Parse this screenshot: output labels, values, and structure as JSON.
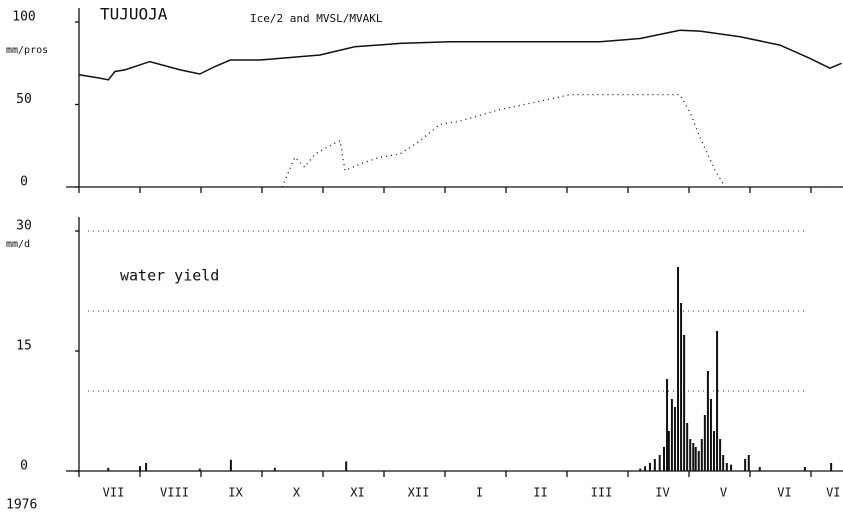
{
  "chart_data": [
    {
      "type": "line",
      "title": "TUJUOJA",
      "subtitle": "Ice/2 and MVSL/MVAKL",
      "ylabel": "mm/pros",
      "ylim": [
        0,
        100
      ],
      "yticks": [
        0,
        50,
        100
      ],
      "xlim": [
        0,
        12.5
      ],
      "xminor": [
        1,
        2,
        3,
        4,
        5,
        6,
        7,
        8,
        9,
        10,
        11,
        12
      ],
      "series": [
        {
          "color": "#111111",
          "style": "solid",
          "x": [
            0,
            0.34,
            0.48,
            0.59,
            0.75,
            1.16,
            1.66,
            1.98,
            2.23,
            2.48,
            2.97,
            3.95,
            4.52,
            5.26,
            6.08,
            8.54,
            9.2,
            9.85,
            10.18,
            10.84,
            11.49,
            11.98,
            12.31,
            12.5
          ],
          "values": [
            68,
            66,
            65,
            70,
            71,
            76,
            71,
            68.5,
            73,
            77,
            77,
            80,
            85,
            87,
            88,
            88,
            90,
            95,
            94.5,
            91,
            86,
            78,
            72,
            75
          ]
        },
        {
          "color": "#111111",
          "style": "dotted",
          "x": [
            3.33,
            3.54,
            3.7,
            3.87,
            4.11,
            4.28,
            4.36,
            4.61,
            4.93,
            5.26,
            5.59,
            5.92,
            6.25,
            6.9,
            7.56,
            8.05,
            8.54,
            9.85,
            10.02,
            10.18,
            10.43,
            10.59,
            11.5,
            11.98,
            12.5
          ],
          "values": [
            0,
            18,
            12,
            20,
            25,
            28,
            10,
            14,
            18,
            20,
            28,
            38,
            40,
            47,
            52,
            56,
            56,
            56,
            45,
            30,
            10,
            0,
            null,
            0,
            0
          ]
        }
      ]
    },
    {
      "type": "bar",
      "ylabel": "mm/d",
      "annotation": "water yield",
      "year": "1976",
      "ylim": [
        0,
        30
      ],
      "yticks": [
        0,
        15,
        30
      ],
      "grid_lines": [
        10,
        20,
        30
      ],
      "xlim": [
        0,
        12.5
      ],
      "xminor": [
        1,
        2,
        3,
        4,
        5,
        6,
        7,
        8,
        9,
        10,
        11,
        12
      ],
      "xticks": [
        {
          "value": 0.5,
          "label": "VII"
        },
        {
          "value": 1.5,
          "label": "VIII"
        },
        {
          "value": 2.5,
          "label": "IX"
        },
        {
          "value": 3.5,
          "label": "X"
        },
        {
          "value": 4.5,
          "label": "XI"
        },
        {
          "value": 5.5,
          "label": "XII"
        },
        {
          "value": 6.5,
          "label": "I"
        },
        {
          "value": 7.5,
          "label": "II"
        },
        {
          "value": 8.5,
          "label": "III"
        },
        {
          "value": 9.5,
          "label": "IV"
        },
        {
          "value": 10.5,
          "label": "V"
        },
        {
          "value": 11.5,
          "label": "VI"
        },
        {
          "value": 12.3,
          "label": "VI"
        }
      ],
      "color": "#111111",
      "x": [
        0.48,
        1.0,
        1.1,
        1.98,
        2.49,
        3.21,
        4.38,
        9.2,
        9.28,
        9.36,
        9.44,
        9.52,
        9.59,
        9.64,
        9.67,
        9.72,
        9.77,
        9.82,
        9.87,
        9.92,
        9.97,
        10.02,
        10.07,
        10.11,
        10.16,
        10.21,
        10.26,
        10.31,
        10.36,
        10.41,
        10.46,
        10.51,
        10.56,
        10.62,
        10.69,
        10.92,
        10.98,
        11.16,
        11.9,
        12.33
      ],
      "values": [
        0.4,
        0.6,
        1.0,
        0.3,
        1.4,
        0.4,
        1.2,
        0.3,
        0.6,
        1,
        1.5,
        2,
        3,
        11.5,
        5,
        9,
        8,
        25.5,
        21,
        17,
        6,
        4,
        3.5,
        3,
        2.5,
        4,
        7,
        12.5,
        9,
        5,
        17.5,
        4,
        2,
        1,
        0.8,
        1.5,
        2,
        0.5,
        0.5,
        1
      ]
    }
  ]
}
